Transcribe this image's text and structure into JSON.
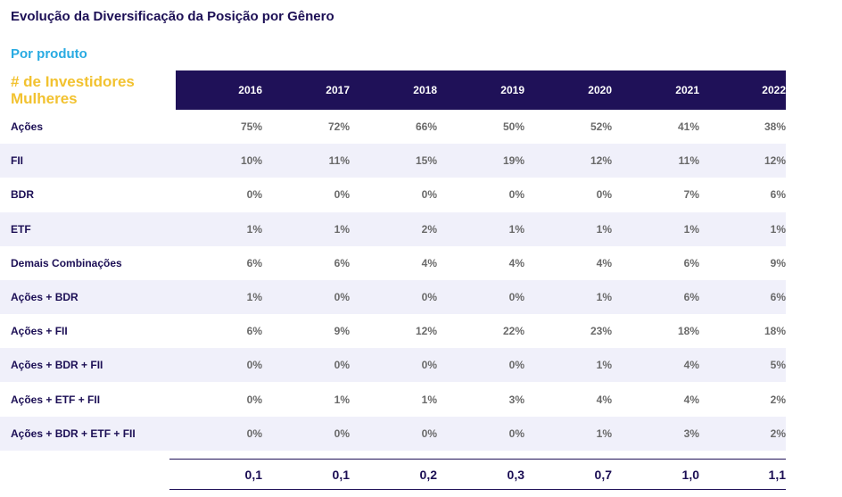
{
  "title": "Evolução da Diversificação da Posição por Gênero",
  "subtitle": "Por produto",
  "corner_label": "# de Investidores Mulheres",
  "colors": {
    "header_bg": "#1f1158",
    "title": "#1c0f55",
    "subtitle": "#29abe2",
    "corner": "#f2c230",
    "alt_row": "#f0f0fa"
  },
  "chart_data": {
    "type": "table",
    "columns": [
      "2016",
      "2017",
      "2018",
      "2019",
      "2020",
      "2021",
      "2022"
    ],
    "rows": [
      {
        "label": "Ações",
        "values": [
          "75%",
          "72%",
          "66%",
          "50%",
          "52%",
          "41%",
          "38%"
        ]
      },
      {
        "label": "FII",
        "values": [
          "10%",
          "11%",
          "15%",
          "19%",
          "12%",
          "11%",
          "12%"
        ]
      },
      {
        "label": "BDR",
        "values": [
          "0%",
          "0%",
          "0%",
          "0%",
          "0%",
          "7%",
          "6%"
        ]
      },
      {
        "label": "ETF",
        "values": [
          "1%",
          "1%",
          "2%",
          "1%",
          "1%",
          "1%",
          "1%"
        ]
      },
      {
        "label": "Demais Combinações",
        "values": [
          "6%",
          "6%",
          "4%",
          "4%",
          "4%",
          "6%",
          "9%"
        ]
      },
      {
        "label": "Ações + BDR",
        "values": [
          "1%",
          "0%",
          "0%",
          "0%",
          "1%",
          "6%",
          "6%"
        ]
      },
      {
        "label": "Ações + FII",
        "values": [
          "6%",
          "9%",
          "12%",
          "22%",
          "23%",
          "18%",
          "18%"
        ]
      },
      {
        "label": "Ações + BDR + FII",
        "values": [
          "0%",
          "0%",
          "0%",
          "0%",
          "1%",
          "4%",
          "5%"
        ]
      },
      {
        "label": "Ações + ETF + FII",
        "values": [
          "0%",
          "1%",
          "1%",
          "3%",
          "4%",
          "4%",
          "2%"
        ]
      },
      {
        "label": "Ações + BDR + ETF + FII",
        "values": [
          "0%",
          "0%",
          "0%",
          "0%",
          "1%",
          "3%",
          "2%"
        ]
      }
    ],
    "totals": [
      "0,1",
      "0,1",
      "0,2",
      "0,3",
      "0,7",
      "1,0",
      "1,1"
    ]
  }
}
